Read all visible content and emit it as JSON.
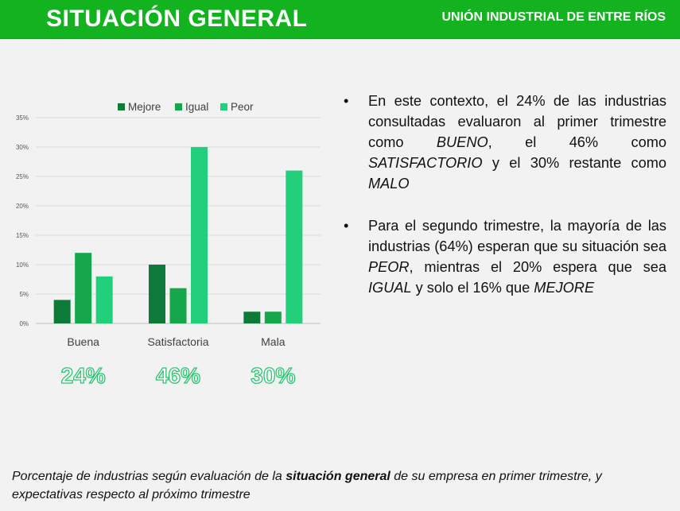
{
  "header": {
    "title": "SITUACIÓN GENERAL",
    "org": "UNIÓN INDUSTRIAL DE ENTRE RÍOS"
  },
  "colors": {
    "header_bg": "#12b31f",
    "mejor": "#0e7a3a",
    "igual": "#16a64c",
    "peor": "#22cf7a",
    "pct_text": "#2bc571"
  },
  "chart_data": {
    "type": "bar",
    "categories": [
      "Buena",
      "Satisfactoria",
      "Mala"
    ],
    "series": [
      {
        "name": "Mejore",
        "values": [
          4,
          10,
          2
        ]
      },
      {
        "name": "Igual",
        "values": [
          12,
          6,
          2
        ]
      },
      {
        "name": "Peor",
        "values": [
          8,
          30,
          26
        ]
      }
    ],
    "y_ticks": [
      "0%",
      "5%",
      "10%",
      "15%",
      "20%",
      "25%",
      "30%",
      "35%"
    ],
    "ylim": [
      0,
      35
    ],
    "grid": true,
    "legend": "top",
    "category_totals": [
      "24%",
      "46%",
      "30%"
    ]
  },
  "bullets": [
    {
      "parts": [
        {
          "text": "En este contexto, el 24% de las industrias consultadas evaluaron al primer trimestre como ",
          "italic": false
        },
        {
          "text": "BUENO",
          "italic": true
        },
        {
          "text": ", el 46% como ",
          "italic": false
        },
        {
          "text": "SATISFACTORIO",
          "italic": true
        },
        {
          "text": " y el 30% restante como ",
          "italic": false
        },
        {
          "text": "MALO",
          "italic": true
        }
      ]
    },
    {
      "parts": [
        {
          "text": "Para el segundo trimestre, la mayoría de las industrias (64%) esperan que su situación sea ",
          "italic": false
        },
        {
          "text": "PEOR",
          "italic": true
        },
        {
          "text": ", mientras el 20% espera que sea ",
          "italic": false
        },
        {
          "text": "IGUAL",
          "italic": true
        },
        {
          "text": " y solo el 16% que ",
          "italic": false
        },
        {
          "text": "MEJORE",
          "italic": true
        }
      ]
    }
  ],
  "caption": {
    "before": "Porcentaje de industrias según evaluación de la ",
    "bold": "situación general",
    "after": " de su empresa en primer trimestre, y expectativas respecto al próximo trimestre"
  }
}
